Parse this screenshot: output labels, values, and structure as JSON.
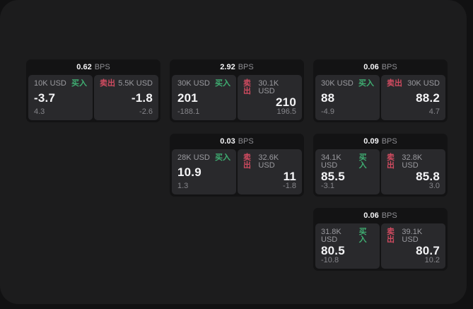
{
  "labels": {
    "buy": "买入",
    "sell": "卖出",
    "bps_suffix": "BPS"
  },
  "colors": {
    "background": "#111112",
    "panel": "#1c1c1d",
    "card": "#131314",
    "tile": "#29292c",
    "text_primary": "#f4f4f6",
    "text_secondary": "#9a9a9f",
    "text_dim": "#86868b",
    "buy_green": "#3fae72",
    "sell_red": "#d14b60"
  },
  "cards": [
    {
      "bps": "0.62",
      "buy": {
        "amount": "10K USD",
        "value": "-3.7",
        "sub_value": "4.3"
      },
      "sell": {
        "amount": "5.5K USD",
        "value": "-1.8",
        "sub_value": "-2.6"
      }
    },
    {
      "bps": "2.92",
      "buy": {
        "amount": "30K USD",
        "value": "201",
        "sub_value": "-188.1"
      },
      "sell": {
        "amount": "30.1K USD",
        "value": "210",
        "sub_value": "196.5"
      }
    },
    {
      "bps": "0.06",
      "buy": {
        "amount": "30K USD",
        "value": "88",
        "sub_value": "-4.9"
      },
      "sell": {
        "amount": "30K USD",
        "value": "88.2",
        "sub_value": "4.7"
      }
    },
    {
      "bps": "0.03",
      "buy": {
        "amount": "28K USD",
        "value": "10.9",
        "sub_value": "1.3"
      },
      "sell": {
        "amount": "32.6K USD",
        "value": "11",
        "sub_value": "-1.8"
      }
    },
    {
      "bps": "0.09",
      "buy": {
        "amount": "34.1K USD",
        "value": "85.5",
        "sub_value": "-3.1"
      },
      "sell": {
        "amount": "32.8K USD",
        "value": "85.8",
        "sub_value": "3.0"
      }
    },
    {
      "bps": "0.06",
      "buy": {
        "amount": "31.8K USD",
        "value": "80.5",
        "sub_value": "-10.8"
      },
      "sell": {
        "amount": "39.1K USD",
        "value": "80.7",
        "sub_value": "10.2"
      }
    }
  ]
}
